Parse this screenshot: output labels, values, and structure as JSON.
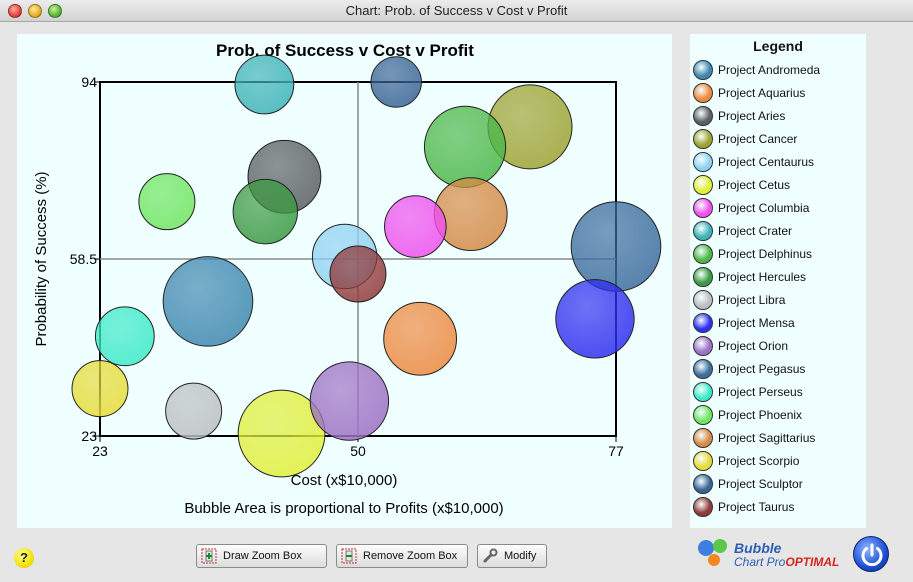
{
  "window": {
    "title": "Chart: Prob. of Success v Cost v Profit"
  },
  "legend": {
    "title": "Legend"
  },
  "toolbar": {
    "draw_zoom_label": "Draw Zoom Box",
    "remove_zoom_label": "Remove Zoom Box",
    "modify_label": "Modify",
    "help_label": "?"
  },
  "logo": {
    "line1": "Bubble",
    "line2a": "Chart Pro",
    "line2b": "OPTIMAL"
  },
  "chart_data": {
    "type": "scatter",
    "title": "Prob. of Success v Cost v Profit",
    "xlabel": "Cost (x$10,000)",
    "ylabel": "Probability of Success (%)",
    "footnote": "Bubble Area is proportional to Profits (x$10,000)",
    "xlim": [
      23,
      77
    ],
    "ylim": [
      23,
      94
    ],
    "xticks": [
      "23",
      "50",
      "77"
    ],
    "yticks": [
      "23",
      "58.5",
      "94"
    ],
    "x_tick_values": [
      23,
      50,
      77
    ],
    "y_tick_values": [
      23,
      58.5,
      94
    ],
    "crosshair": {
      "x": 50,
      "y": 58.5
    },
    "series": [
      {
        "name": "Project Andromeda",
        "color": "#3f88b0",
        "x": 34.3,
        "y": 50.0,
        "size": 32
      },
      {
        "name": "Project Aquarius",
        "color": "#ee8a40",
        "x": 56.5,
        "y": 42.5,
        "size": 26
      },
      {
        "name": "Project Aries",
        "color": "#5c6062",
        "x": 42.3,
        "y": 75.0,
        "size": 26
      },
      {
        "name": "Project Cancer",
        "color": "#9ea333",
        "x": 68.0,
        "y": 85.0,
        "size": 30
      },
      {
        "name": "Project Centaurus",
        "color": "#90d2f2",
        "x": 48.6,
        "y": 59.0,
        "size": 23
      },
      {
        "name": "Project Cetus",
        "color": "#e0ef3a",
        "x": 42.0,
        "y": 23.5,
        "size": 31
      },
      {
        "name": "Project Columbia",
        "color": "#ef50ef",
        "x": 56.0,
        "y": 65.0,
        "size": 22
      },
      {
        "name": "Project Crater",
        "color": "#3eb3b8",
        "x": 40.2,
        "y": 93.5,
        "size": 21
      },
      {
        "name": "Project Delphinus",
        "color": "#4cb849",
        "x": 61.2,
        "y": 81.0,
        "size": 29
      },
      {
        "name": "Project Hercules",
        "color": "#3c9a43",
        "x": 40.3,
        "y": 68.0,
        "size": 23
      },
      {
        "name": "Project Libra",
        "color": "#bcc0c2",
        "x": 32.8,
        "y": 28.0,
        "size": 20
      },
      {
        "name": "Project Mensa",
        "color": "#2f2ff0",
        "x": 74.8,
        "y": 46.5,
        "size": 28
      },
      {
        "name": "Project Orion",
        "color": "#9d71c4",
        "x": 49.1,
        "y": 30.0,
        "size": 28
      },
      {
        "name": "Project Pegasus",
        "color": "#3d6d9e",
        "x": 77.0,
        "y": 61.0,
        "size": 32
      },
      {
        "name": "Project Perseus",
        "color": "#3deac8",
        "x": 25.6,
        "y": 43.0,
        "size": 21
      },
      {
        "name": "Project Phoenix",
        "color": "#6fe660",
        "x": 30.0,
        "y": 70.0,
        "size": 20
      },
      {
        "name": "Project Sagittarius",
        "color": "#d58a45",
        "x": 61.8,
        "y": 67.5,
        "size": 26
      },
      {
        "name": "Project Scorpio",
        "color": "#e6dc3a",
        "x": 23.0,
        "y": 32.5,
        "size": 20
      },
      {
        "name": "Project Sculptor",
        "color": "#3a6494",
        "x": 54.0,
        "y": 94.0,
        "size": 18
      },
      {
        "name": "Project Taurus",
        "color": "#913a3a",
        "x": 50.0,
        "y": 55.5,
        "size": 20
      }
    ]
  }
}
